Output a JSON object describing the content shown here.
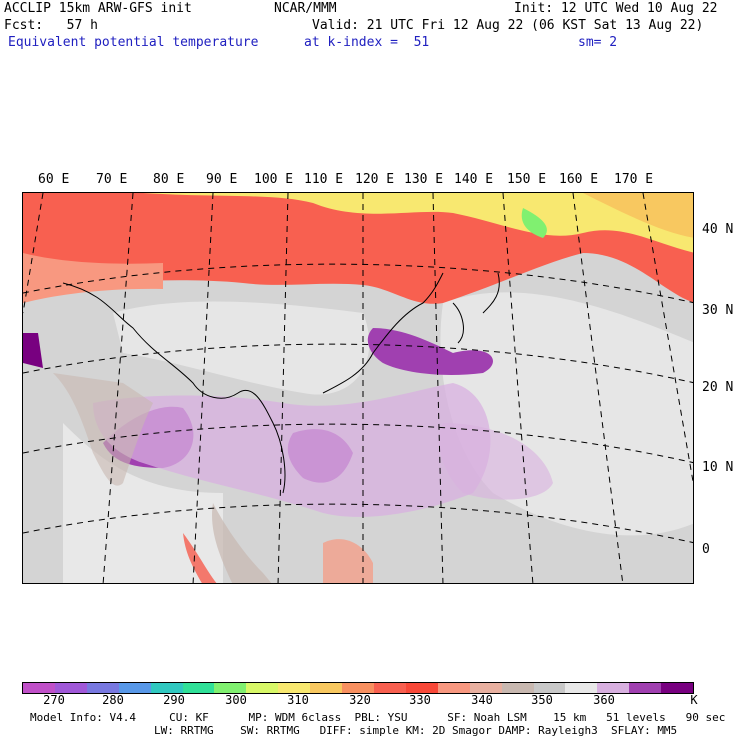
{
  "header": {
    "line1_left": "ACCLIP 15km ARW-GFS init",
    "line1_center": "NCAR/MMM",
    "line1_right": "Init: 12 UTC Wed 10 Aug 22",
    "line2_left": "Fcst:   57 h",
    "line2_right": "Valid: 21 UTC Fri 12 Aug 22 (06 KST Sat 13 Aug 22)",
    "line3_left": "Equivalent potential temperature",
    "line3_center": "at k-index =  51",
    "line3_right": "sm= 2"
  },
  "map": {
    "lon_labels": [
      "60 E",
      "70 E",
      "80 E",
      "90 E",
      "100 E",
      "110 E",
      "120 E",
      "130 E",
      "140 E",
      "150 E",
      "160 E",
      "170 E"
    ],
    "lat_labels": [
      "40 N",
      "30 N",
      "20 N",
      "10 N",
      "0"
    ]
  },
  "colorbar": {
    "colors": [
      "#c050c8",
      "#a058d8",
      "#7878e0",
      "#5898e8",
      "#30c8c0",
      "#30e098",
      "#80f070",
      "#d8f868",
      "#f8e870",
      "#f8c860",
      "#f89060",
      "#f86050",
      "#f84838",
      "#f89880",
      "#e8b0a0",
      "#c8b8b0",
      "#c8c8c8",
      "#e8e8e8",
      "#d8b0e0",
      "#a040b0",
      "#780080"
    ],
    "labels": [
      "270",
      "280",
      "290",
      "300",
      "310",
      "320",
      "330",
      "340",
      "350",
      "360"
    ],
    "unit": "K"
  },
  "footer": {
    "line1": "Model Info: V4.4     CU: KF      MP: WDM 6class  PBL: YSU      SF: Noah LSM    15 km   51 levels   90 sec",
    "line2": "LW: RRTMG    SW: RRTMG   DIFF: simple KM: 2D Smagor DAMP: Rayleigh3  SFLAY: MM5"
  }
}
